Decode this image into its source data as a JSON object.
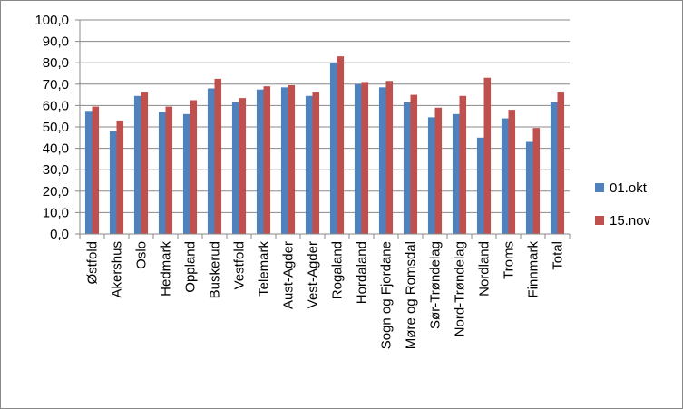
{
  "chart_data": {
    "type": "bar",
    "categories": [
      "Østfold",
      "Akershus",
      "Oslo",
      "Hedmark",
      "Oppland",
      "Buskerud",
      "Vestfold",
      "Telemark",
      "Aust-Agder",
      "Vest-Agder",
      "Rogaland",
      "Hordaland",
      "Sogn og Fjordane",
      "Møre og Romsdal",
      "Sør-Trøndelag",
      "Nord-Trøndelag",
      "Nordland",
      "Troms",
      "Finnmark",
      "Total"
    ],
    "series": [
      {
        "name": "01.okt",
        "color": "#4f81bd",
        "values": [
          57.5,
          48,
          64.5,
          57,
          56,
          68,
          61.5,
          67.5,
          68.5,
          64.5,
          80,
          70,
          68.5,
          61.5,
          54.5,
          56,
          45,
          54,
          43,
          61.5
        ]
      },
      {
        "name": "15.nov",
        "color": "#c0504d",
        "values": [
          59.5,
          53,
          66.5,
          59.5,
          62.5,
          72.5,
          63.5,
          69,
          69.5,
          66.5,
          83,
          71,
          71.5,
          65,
          59,
          64.5,
          73,
          58,
          49.5,
          66.5
        ]
      }
    ],
    "ylim": [
      0,
      100
    ],
    "yticks": [
      {
        "value": 0,
        "label": "0,0"
      },
      {
        "value": 10,
        "label": "10,0"
      },
      {
        "value": 20,
        "label": "20,0"
      },
      {
        "value": 30,
        "label": "30,0"
      },
      {
        "value": 40,
        "label": "40,0"
      },
      {
        "value": 50,
        "label": "50,0"
      },
      {
        "value": 60,
        "label": "60,0"
      },
      {
        "value": 70,
        "label": "70,0"
      },
      {
        "value": 80,
        "label": "80,0"
      },
      {
        "value": 90,
        "label": "90,0"
      },
      {
        "value": 100,
        "label": "100,0"
      }
    ],
    "grid": true
  }
}
